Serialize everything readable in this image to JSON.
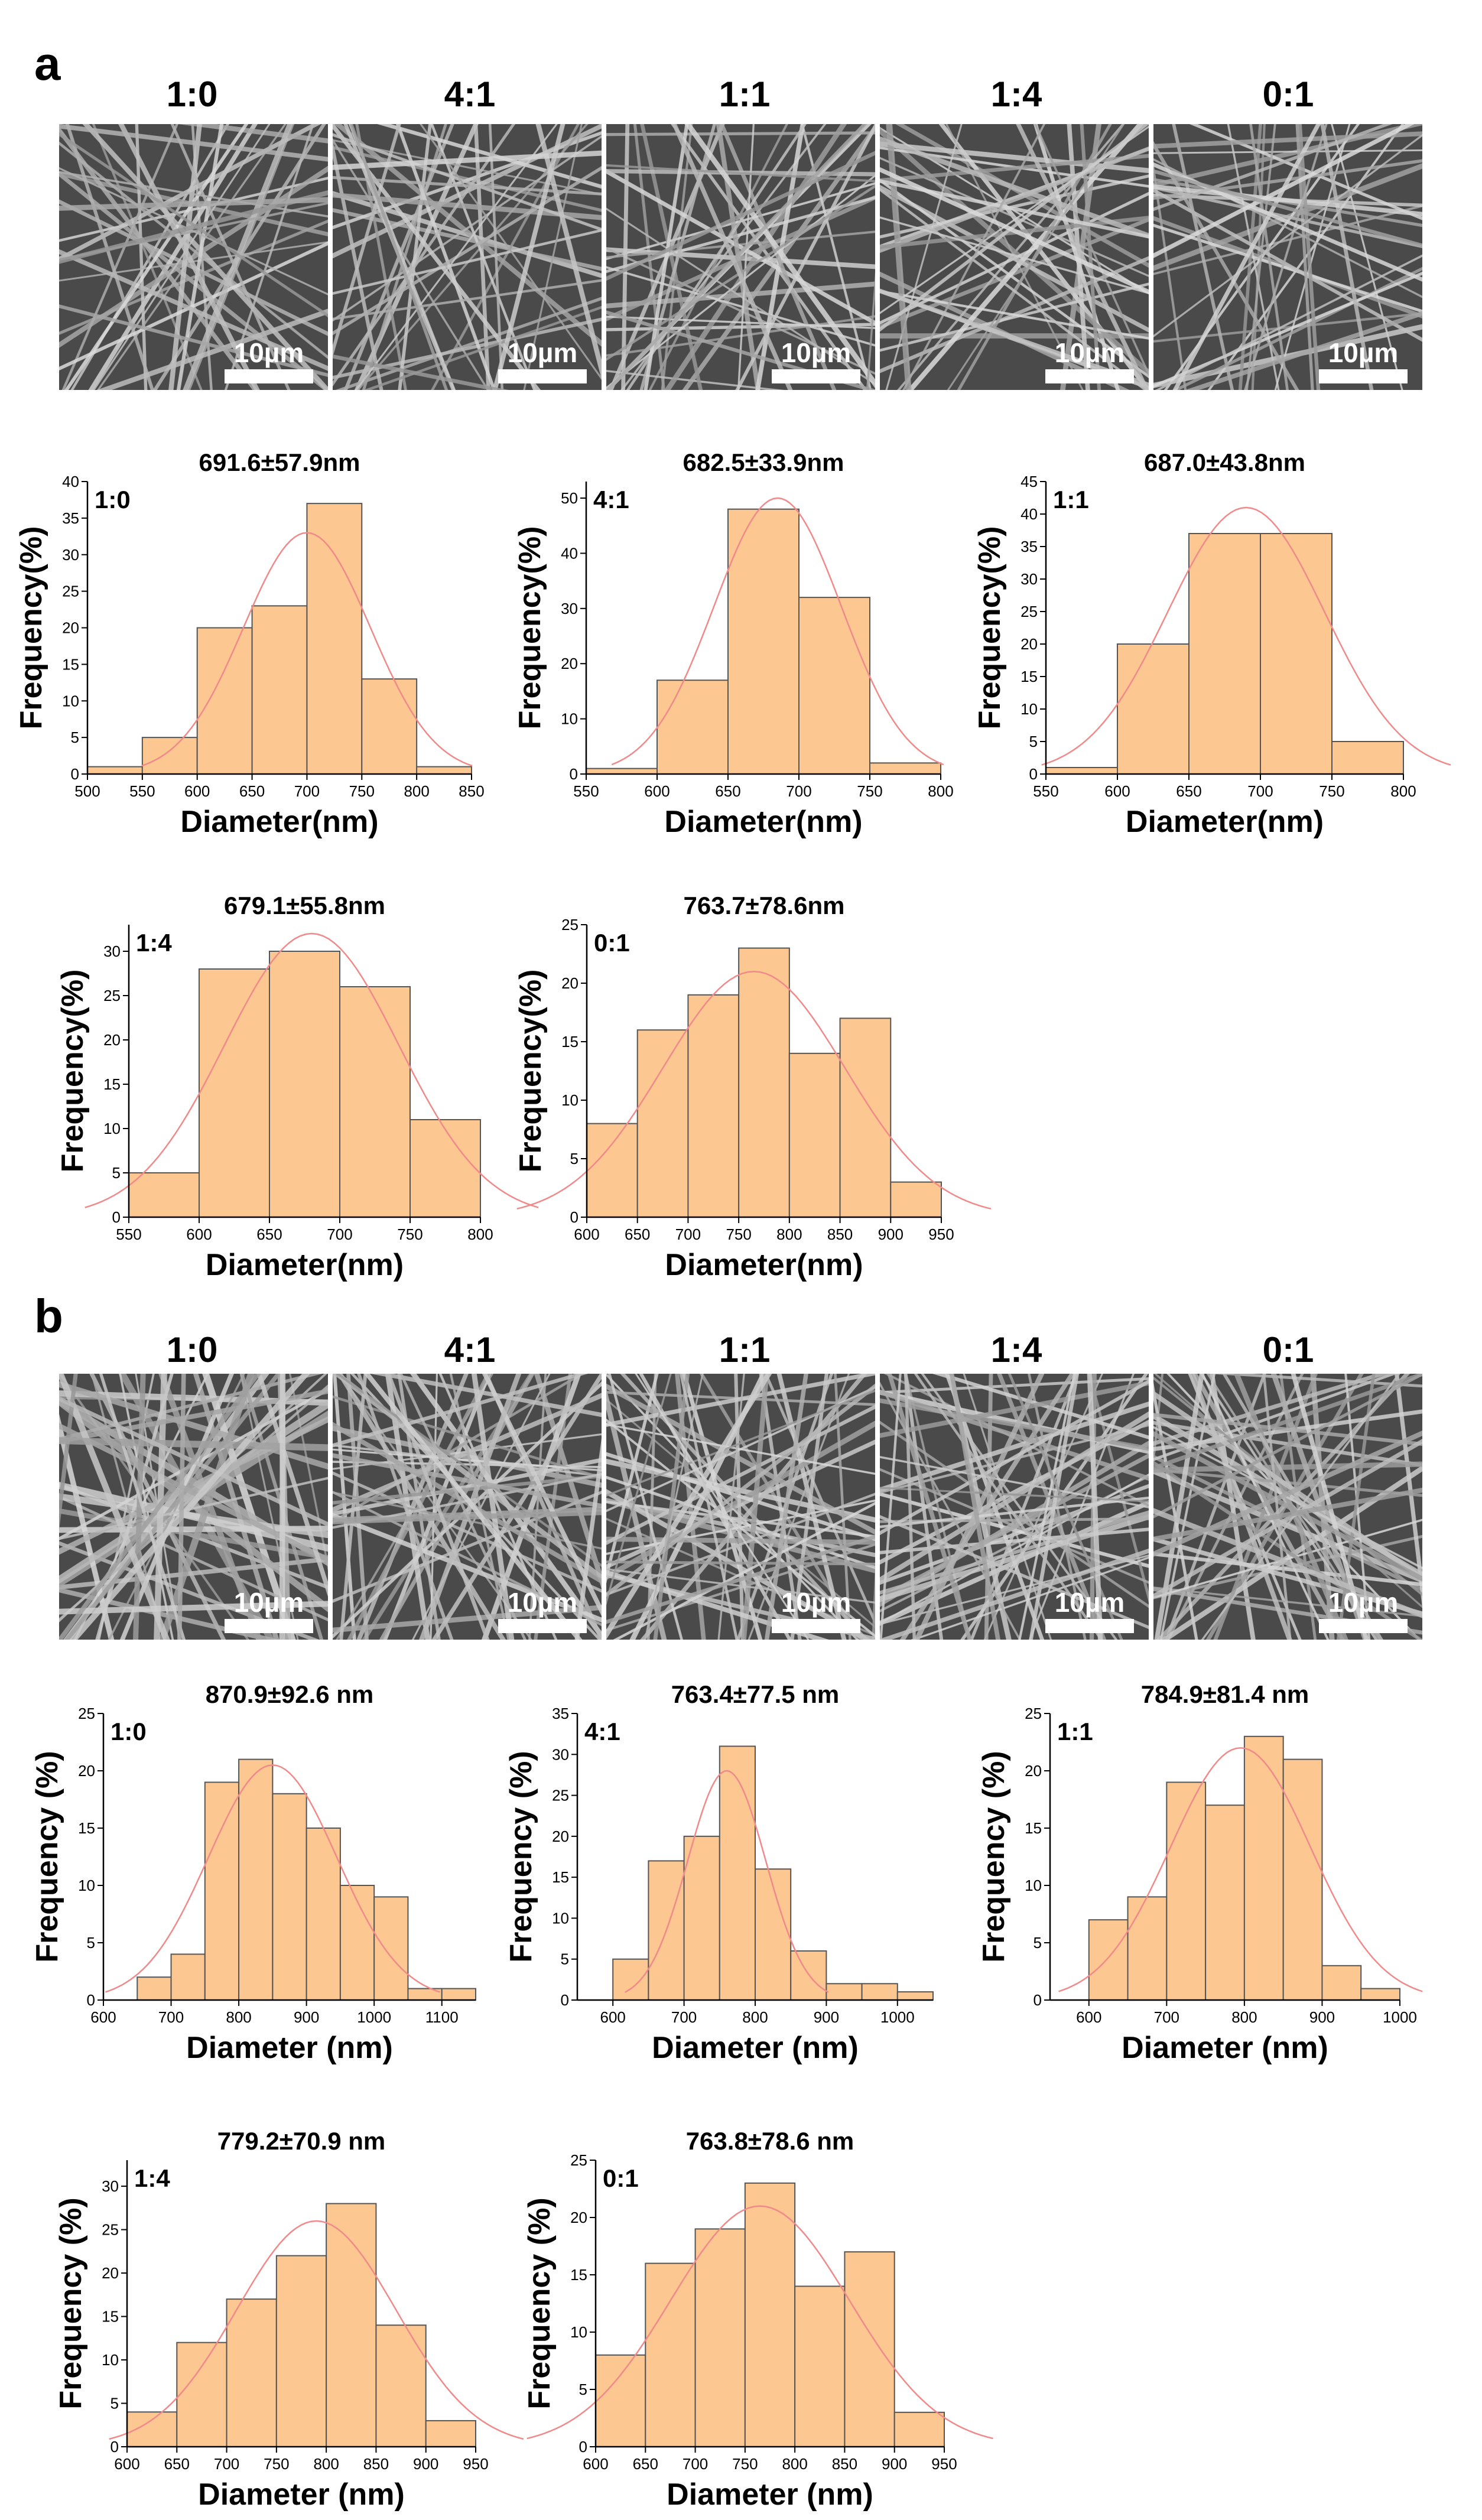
{
  "panels": [
    {
      "letter": "a",
      "ratios": [
        "1:0",
        "4:1",
        "1:1",
        "1:4",
        "0:1"
      ],
      "scale_bar": "10µm"
    },
    {
      "letter": "b",
      "ratios": [
        "1:0",
        "4:1",
        "1:1",
        "1:4",
        "0:1"
      ],
      "scale_bar": "10µm"
    }
  ],
  "colors": {
    "bar_fill": "#fcc791",
    "bar_stroke": "#555555",
    "fit": "#f08a8a",
    "sem_bg": "#6b6b6b",
    "sem_fiber": "#c8c8c8"
  },
  "chart_data": [
    {
      "panel": "a",
      "type": "bar",
      "sample": "1:0",
      "title": "691.6±57.9nm",
      "xlabel": "Diameter(nm)",
      "ylabel": "Frequency(%)",
      "xlim": [
        500,
        850
      ],
      "xticks": [
        500,
        550,
        600,
        650,
        700,
        750,
        800,
        850
      ],
      "ylim": [
        0,
        40
      ],
      "yticks": [
        0,
        5,
        10,
        15,
        20,
        25,
        30,
        35,
        40
      ],
      "categories": [
        525,
        575,
        625,
        675,
        725,
        775,
        825
      ],
      "values": [
        1,
        5,
        20,
        23,
        37,
        13,
        1
      ],
      "bin_width": 50,
      "fit": {
        "mean": 700,
        "sd": 57.9,
        "peak": 33
      }
    },
    {
      "panel": "a",
      "type": "bar",
      "sample": "4:1",
      "title": "682.5±33.9nm",
      "xlabel": "Diameter(nm)",
      "ylabel": "Frequency(%)",
      "xlim": [
        550,
        800
      ],
      "xticks": [
        550,
        600,
        650,
        700,
        750,
        800
      ],
      "ylim": [
        0,
        53
      ],
      "yticks": [
        0,
        10,
        20,
        30,
        40,
        50
      ],
      "categories": [
        575,
        625,
        675,
        725,
        775
      ],
      "values": [
        1,
        17,
        48,
        32,
        2
      ],
      "bin_width": 50,
      "fit": {
        "mean": 685,
        "sd": 45,
        "peak": 50
      }
    },
    {
      "panel": "a",
      "type": "bar",
      "sample": "1:1",
      "title": "687.0±43.8nm",
      "xlabel": "Diameter(nm)",
      "ylabel": "Frequency(%)",
      "xlim": [
        550,
        800
      ],
      "xticks": [
        550,
        600,
        650,
        700,
        750,
        800
      ],
      "ylim": [
        0,
        45
      ],
      "yticks": [
        0,
        5,
        10,
        15,
        20,
        25,
        30,
        35,
        40,
        45
      ],
      "categories": [
        575,
        625,
        675,
        725,
        775
      ],
      "values": [
        1,
        20,
        37,
        37,
        5
      ],
      "bin_width": 50,
      "fit": {
        "mean": 690,
        "sd": 55,
        "peak": 41
      }
    },
    {
      "panel": "a",
      "type": "bar",
      "sample": "1:4",
      "title": "679.1±55.8nm",
      "xlabel": "Diameter(nm)",
      "ylabel": "Frequency(%)",
      "xlim": [
        550,
        800
      ],
      "xticks": [
        550,
        600,
        650,
        700,
        750,
        800
      ],
      "ylim": [
        0,
        33
      ],
      "yticks": [
        0,
        5,
        10,
        15,
        20,
        25,
        30
      ],
      "categories": [
        575,
        625,
        675,
        725,
        775
      ],
      "values": [
        5,
        28,
        30,
        26,
        11
      ],
      "bin_width": 50,
      "fit": {
        "mean": 680,
        "sd": 62,
        "peak": 32
      }
    },
    {
      "panel": "a",
      "type": "bar",
      "sample": "0:1",
      "title": "763.7±78.6nm",
      "xlabel": "Diameter(nm)",
      "ylabel": "Frequency(%)",
      "xlim": [
        600,
        950
      ],
      "xticks": [
        600,
        650,
        700,
        750,
        800,
        850,
        900,
        950
      ],
      "ylim": [
        0,
        25
      ],
      "yticks": [
        0,
        5,
        10,
        15,
        20,
        25
      ],
      "categories": [
        625,
        675,
        725,
        775,
        825,
        875,
        925
      ],
      "values": [
        8,
        16,
        19,
        23,
        14,
        17,
        3
      ],
      "bin_width": 50,
      "fit": {
        "mean": 765,
        "sd": 90,
        "peak": 21
      }
    },
    {
      "panel": "b",
      "type": "bar",
      "sample": "1:0",
      "title": "870.9±92.6 nm",
      "xlabel": "Diameter (nm)",
      "ylabel": "Frequency (%)",
      "xlim": [
        600,
        1150
      ],
      "xticks": [
        600,
        700,
        800,
        900,
        1000,
        1100
      ],
      "ylim": [
        0,
        25
      ],
      "yticks": [
        0,
        5,
        10,
        15,
        20,
        25
      ],
      "categories": [
        675,
        725,
        775,
        825,
        875,
        925,
        975,
        1025,
        1075,
        1125
      ],
      "values": [
        2,
        4,
        19,
        21,
        18,
        15,
        10,
        9,
        1,
        1
      ],
      "bin_width": 50,
      "fit": {
        "mean": 850,
        "sd": 95,
        "peak": 20.5
      }
    },
    {
      "panel": "b",
      "type": "bar",
      "sample": "4:1",
      "title": "763.4±77.5 nm",
      "xlabel": "Diameter (nm)",
      "ylabel": "Frequency (%)",
      "xlim": [
        550,
        1050
      ],
      "xticks": [
        600,
        700,
        800,
        900,
        1000
      ],
      "ylim": [
        0,
        35
      ],
      "yticks": [
        0,
        5,
        10,
        15,
        20,
        25,
        30,
        35
      ],
      "categories": [
        625,
        675,
        725,
        775,
        825,
        875,
        925,
        975,
        1025
      ],
      "values": [
        5,
        17,
        20,
        31,
        16,
        6,
        2,
        2,
        1
      ],
      "bin_width": 50,
      "fit": {
        "mean": 760,
        "sd": 55,
        "peak": 28
      }
    },
    {
      "panel": "b",
      "type": "bar",
      "sample": "1:1",
      "title": "784.9±81.4 nm",
      "xlabel": "Diameter (nm)",
      "ylabel": "Frequency (%)",
      "xlim": [
        550,
        1000
      ],
      "xticks": [
        600,
        700,
        800,
        900,
        1000
      ],
      "ylim": [
        0,
        25
      ],
      "yticks": [
        0,
        5,
        10,
        15,
        20,
        25
      ],
      "categories": [
        625,
        675,
        725,
        775,
        825,
        875,
        925,
        975
      ],
      "values": [
        7,
        9,
        19,
        17,
        23,
        21,
        3,
        1
      ],
      "bin_width": 50,
      "fit": {
        "mean": 795,
        "sd": 90,
        "peak": 22
      }
    },
    {
      "panel": "b",
      "type": "bar",
      "sample": "1:4",
      "title": "779.2±70.9 nm",
      "xlabel": "Diameter (nm)",
      "ylabel": "Frequency (%)",
      "xlim": [
        600,
        950
      ],
      "xticks": [
        600,
        650,
        700,
        750,
        800,
        850,
        900,
        950
      ],
      "ylim": [
        0,
        33
      ],
      "yticks": [
        0,
        5,
        10,
        15,
        20,
        25,
        30
      ],
      "categories": [
        625,
        675,
        725,
        775,
        825,
        875,
        925
      ],
      "values": [
        4,
        12,
        17,
        22,
        28,
        14,
        3
      ],
      "bin_width": 50,
      "fit": {
        "mean": 790,
        "sd": 80,
        "peak": 26
      }
    },
    {
      "panel": "b",
      "type": "bar",
      "sample": "0:1",
      "title": "763.8±78.6 nm",
      "xlabel": "Diameter (nm)",
      "ylabel": "Frequency (%)",
      "xlim": [
        600,
        950
      ],
      "xticks": [
        600,
        650,
        700,
        750,
        800,
        850,
        900,
        950
      ],
      "ylim": [
        0,
        25
      ],
      "yticks": [
        0,
        5,
        10,
        15,
        20,
        25
      ],
      "categories": [
        625,
        675,
        725,
        775,
        825,
        875,
        925
      ],
      "values": [
        8,
        16,
        19,
        23,
        14,
        17,
        3
      ],
      "bin_width": 50,
      "fit": {
        "mean": 765,
        "sd": 90,
        "peak": 21
      }
    }
  ]
}
